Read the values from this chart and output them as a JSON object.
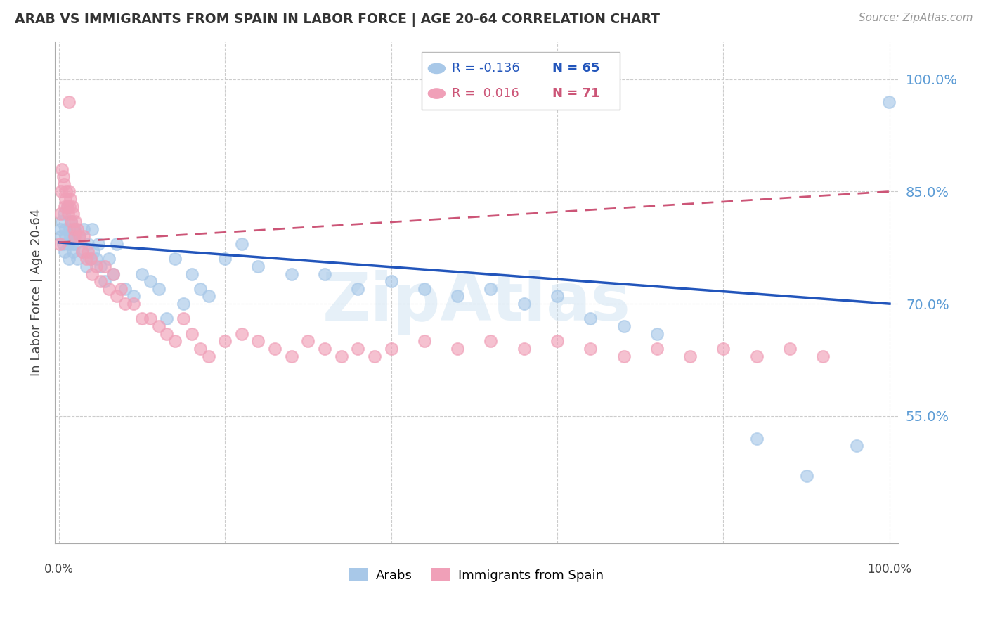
{
  "title": "ARAB VS IMMIGRANTS FROM SPAIN IN LABOR FORCE | AGE 20-64 CORRELATION CHART",
  "source": "Source: ZipAtlas.com",
  "ylabel": "In Labor Force | Age 20-64",
  "y_ticks": [
    0.55,
    0.7,
    0.85,
    1.0
  ],
  "y_tick_labels": [
    "55.0%",
    "70.0%",
    "85.0%",
    "100.0%"
  ],
  "watermark": "ZipAtlas",
  "legend_blue_r": "R = -0.136",
  "legend_blue_n": "N = 65",
  "legend_pink_r": "R =  0.016",
  "legend_pink_n": "N = 71",
  "blue_color": "#a8c8e8",
  "pink_color": "#f0a0b8",
  "trend_blue_color": "#2255bb",
  "trend_pink_color": "#cc5577",
  "blue_marker_edge": "#a8c8e8",
  "pink_marker_edge": "#f0a0b8",
  "blue_x": [
    0.002,
    0.003,
    0.004,
    0.005,
    0.006,
    0.007,
    0.008,
    0.009,
    0.01,
    0.011,
    0.012,
    0.013,
    0.014,
    0.015,
    0.016,
    0.017,
    0.018,
    0.019,
    0.02,
    0.022,
    0.025,
    0.028,
    0.03,
    0.033,
    0.035,
    0.038,
    0.04,
    0.042,
    0.045,
    0.048,
    0.05,
    0.055,
    0.06,
    0.065,
    0.07,
    0.08,
    0.09,
    0.1,
    0.11,
    0.12,
    0.13,
    0.14,
    0.15,
    0.16,
    0.17,
    0.18,
    0.2,
    0.22,
    0.24,
    0.28,
    0.32,
    0.36,
    0.4,
    0.44,
    0.48,
    0.52,
    0.56,
    0.6,
    0.64,
    0.68,
    0.72,
    0.84,
    0.9,
    0.96,
    0.999
  ],
  "blue_y": [
    0.8,
    0.79,
    0.81,
    0.78,
    0.82,
    0.77,
    0.8,
    0.79,
    0.83,
    0.78,
    0.76,
    0.8,
    0.79,
    0.81,
    0.78,
    0.77,
    0.79,
    0.8,
    0.78,
    0.76,
    0.79,
    0.77,
    0.8,
    0.75,
    0.78,
    0.76,
    0.8,
    0.77,
    0.76,
    0.78,
    0.75,
    0.73,
    0.76,
    0.74,
    0.78,
    0.72,
    0.71,
    0.74,
    0.73,
    0.72,
    0.68,
    0.76,
    0.7,
    0.74,
    0.72,
    0.71,
    0.76,
    0.78,
    0.75,
    0.74,
    0.74,
    0.72,
    0.73,
    0.72,
    0.71,
    0.72,
    0.7,
    0.71,
    0.68,
    0.67,
    0.66,
    0.52,
    0.47,
    0.51,
    0.97
  ],
  "pink_x": [
    0.001,
    0.002,
    0.003,
    0.004,
    0.005,
    0.006,
    0.007,
    0.008,
    0.009,
    0.01,
    0.011,
    0.012,
    0.013,
    0.014,
    0.015,
    0.016,
    0.017,
    0.018,
    0.019,
    0.02,
    0.022,
    0.025,
    0.028,
    0.03,
    0.033,
    0.035,
    0.038,
    0.04,
    0.045,
    0.05,
    0.055,
    0.06,
    0.065,
    0.07,
    0.075,
    0.08,
    0.09,
    0.1,
    0.11,
    0.12,
    0.13,
    0.14,
    0.15,
    0.16,
    0.17,
    0.18,
    0.2,
    0.22,
    0.24,
    0.26,
    0.28,
    0.3,
    0.32,
    0.34,
    0.36,
    0.38,
    0.4,
    0.44,
    0.48,
    0.52,
    0.56,
    0.6,
    0.64,
    0.68,
    0.72,
    0.76,
    0.8,
    0.84,
    0.88,
    0.92,
    0.012
  ],
  "pink_y": [
    0.78,
    0.82,
    0.85,
    0.88,
    0.87,
    0.86,
    0.83,
    0.84,
    0.85,
    0.83,
    0.82,
    0.85,
    0.83,
    0.84,
    0.81,
    0.83,
    0.82,
    0.8,
    0.79,
    0.81,
    0.8,
    0.79,
    0.77,
    0.79,
    0.76,
    0.77,
    0.76,
    0.74,
    0.75,
    0.73,
    0.75,
    0.72,
    0.74,
    0.71,
    0.72,
    0.7,
    0.7,
    0.68,
    0.68,
    0.67,
    0.66,
    0.65,
    0.68,
    0.66,
    0.64,
    0.63,
    0.65,
    0.66,
    0.65,
    0.64,
    0.63,
    0.65,
    0.64,
    0.63,
    0.64,
    0.63,
    0.64,
    0.65,
    0.64,
    0.65,
    0.64,
    0.65,
    0.64,
    0.63,
    0.64,
    0.63,
    0.64,
    0.63,
    0.64,
    0.63,
    0.97
  ],
  "blue_trend_x0": 0.0,
  "blue_trend_y0": 0.782,
  "blue_trend_x1": 1.0,
  "blue_trend_y1": 0.7,
  "pink_trend_x0": 0.0,
  "pink_trend_y0": 0.782,
  "pink_trend_x1": 1.0,
  "pink_trend_y1": 0.85,
  "xlim": [
    -0.005,
    1.01
  ],
  "ylim": [
    0.38,
    1.05
  ]
}
